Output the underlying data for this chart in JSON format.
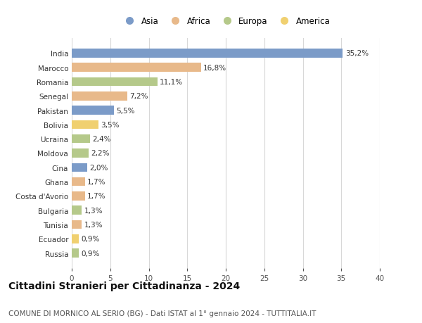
{
  "countries": [
    "India",
    "Marocco",
    "Romania",
    "Senegal",
    "Pakistan",
    "Bolivia",
    "Ucraina",
    "Moldova",
    "Cina",
    "Ghana",
    "Costa d'Avorio",
    "Bulgaria",
    "Tunisia",
    "Ecuador",
    "Russia"
  ],
  "values": [
    35.2,
    16.8,
    11.1,
    7.2,
    5.5,
    3.5,
    2.4,
    2.2,
    2.0,
    1.7,
    1.7,
    1.3,
    1.3,
    0.9,
    0.9
  ],
  "labels": [
    "35,2%",
    "16,8%",
    "11,1%",
    "7,2%",
    "5,5%",
    "3,5%",
    "2,4%",
    "2,2%",
    "2,0%",
    "1,7%",
    "1,7%",
    "1,3%",
    "1,3%",
    "0,9%",
    "0,9%"
  ],
  "continents": [
    "Asia",
    "Africa",
    "Europa",
    "Africa",
    "Asia",
    "America",
    "Europa",
    "Europa",
    "Asia",
    "Africa",
    "Africa",
    "Europa",
    "Africa",
    "America",
    "Europa"
  ],
  "continent_colors": {
    "Asia": "#7b9bc8",
    "Africa": "#e8b98a",
    "Europa": "#b5c98a",
    "America": "#f0d070"
  },
  "legend_order": [
    "Asia",
    "Africa",
    "Europa",
    "America"
  ],
  "xlim": [
    0,
    40
  ],
  "xticks": [
    0,
    5,
    10,
    15,
    20,
    25,
    30,
    35,
    40
  ],
  "title": "Cittadini Stranieri per Cittadinanza - 2024",
  "subtitle": "COMUNE DI MORNICO AL SERIO (BG) - Dati ISTAT al 1° gennaio 2024 - TUTTITALIA.IT",
  "background_color": "#ffffff",
  "grid_color": "#d8d8d8",
  "bar_height": 0.62,
  "title_fontsize": 10,
  "subtitle_fontsize": 7.5,
  "label_fontsize": 7.5,
  "tick_fontsize": 7.5,
  "legend_fontsize": 8.5
}
